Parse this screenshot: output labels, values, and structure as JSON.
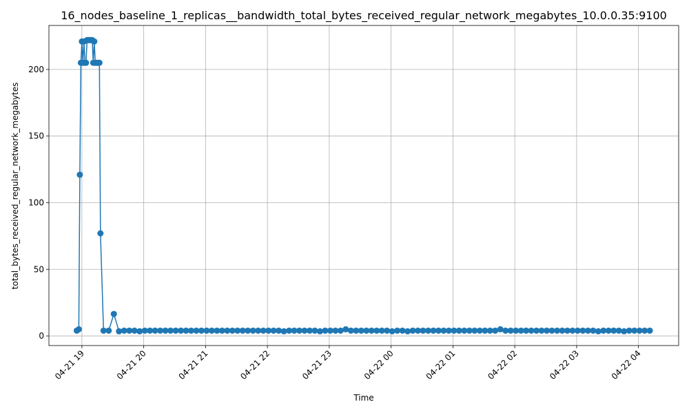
{
  "chart_data": {
    "type": "line",
    "title": "16_nodes_baseline_1_replicas__bandwidth_total_bytes_received_regular_network_megabytes_10.0.0.35:9100",
    "xlabel": "Time",
    "ylabel": "total_bytes_received_regular_network_megabytes",
    "grid": true,
    "xlim": [
      "04-21 18:28",
      "04-22 04:39"
    ],
    "xticks": [
      "04-21 19",
      "04-21 20",
      "04-21 21",
      "04-21 22",
      "04-21 23",
      "04-22 00",
      "04-22 01",
      "04-22 02",
      "04-22 03",
      "04-22 04"
    ],
    "ylim": [
      -7.2,
      233
    ],
    "yticks": [
      0,
      50,
      100,
      150,
      200
    ],
    "x": [
      "04-21 18:55",
      "04-21 18:57",
      "04-21 18:58",
      "04-21 18:59",
      "04-21 19:00",
      "04-21 19:01",
      "04-21 19:02",
      "04-21 19:03",
      "04-21 19:04",
      "04-21 19:05",
      "04-21 19:06",
      "04-21 19:07",
      "04-21 19:08",
      "04-21 19:09",
      "04-21 19:10",
      "04-21 19:11",
      "04-21 19:12",
      "04-21 19:13",
      "04-21 19:14",
      "04-21 19:15",
      "04-21 19:16",
      "04-21 19:17",
      "04-21 19:18",
      "04-21 19:21",
      "04-21 19:26",
      "04-21 19:31",
      "04-21 19:36",
      "04-21 19:41",
      "04-21 19:46",
      "04-21 19:51",
      "04-21 19:56",
      "04-21 20:01",
      "04-21 20:06",
      "04-21 20:11",
      "04-21 20:16",
      "04-21 20:21",
      "04-21 20:26",
      "04-21 20:31",
      "04-21 20:36",
      "04-21 20:41",
      "04-21 20:46",
      "04-21 20:51",
      "04-21 20:56",
      "04-21 21:01",
      "04-21 21:06",
      "04-21 21:11",
      "04-21 21:16",
      "04-21 21:21",
      "04-21 21:26",
      "04-21 21:31",
      "04-21 21:36",
      "04-21 21:41",
      "04-21 21:46",
      "04-21 21:51",
      "04-21 21:56",
      "04-21 22:01",
      "04-21 22:06",
      "04-21 22:11",
      "04-21 22:16",
      "04-21 22:21",
      "04-21 22:26",
      "04-21 22:31",
      "04-21 22:36",
      "04-21 22:41",
      "04-21 22:46",
      "04-21 22:51",
      "04-21 22:56",
      "04-21 23:01",
      "04-21 23:06",
      "04-21 23:11",
      "04-21 23:16",
      "04-21 23:21",
      "04-21 23:26",
      "04-21 23:31",
      "04-21 23:36",
      "04-21 23:41",
      "04-21 23:46",
      "04-21 23:51",
      "04-21 23:56",
      "04-22 00:01",
      "04-22 00:06",
      "04-22 00:11",
      "04-22 00:16",
      "04-22 00:21",
      "04-22 00:26",
      "04-22 00:31",
      "04-22 00:36",
      "04-22 00:41",
      "04-22 00:46",
      "04-22 00:51",
      "04-22 00:56",
      "04-22 01:01",
      "04-22 01:06",
      "04-22 01:11",
      "04-22 01:16",
      "04-22 01:21",
      "04-22 01:26",
      "04-22 01:31",
      "04-22 01:36",
      "04-22 01:41",
      "04-22 01:46",
      "04-22 01:51",
      "04-22 01:56",
      "04-22 02:01",
      "04-22 02:06",
      "04-22 02:11",
      "04-22 02:16",
      "04-22 02:21",
      "04-22 02:26",
      "04-22 02:31",
      "04-22 02:36",
      "04-22 02:41",
      "04-22 02:46",
      "04-22 02:51",
      "04-22 02:56",
      "04-22 03:01",
      "04-22 03:06",
      "04-22 03:11",
      "04-22 03:16",
      "04-22 03:21",
      "04-22 03:26",
      "04-22 03:31",
      "04-22 03:36",
      "04-22 03:41",
      "04-22 03:46",
      "04-22 03:51",
      "04-22 03:56",
      "04-22 04:01",
      "04-22 04:06",
      "04-22 04:11"
    ],
    "series": [
      {
        "name": "total_bytes_received_regular_network_megabytes",
        "color": "#1f77b4",
        "values": [
          4,
          5,
          121,
          205,
          221,
          205,
          221,
          205,
          205,
          222,
          222,
          222,
          222,
          222,
          222,
          205,
          221,
          205,
          205,
          205,
          205,
          205,
          77,
          4,
          4,
          16.5,
          3.5,
          4,
          4,
          4,
          3.5,
          4,
          4,
          4,
          4,
          4,
          4,
          4,
          4,
          4,
          4,
          4,
          4,
          4,
          4,
          4,
          4,
          4,
          4,
          4,
          4,
          4,
          4,
          4,
          4,
          4,
          4,
          4,
          3.5,
          4,
          4,
          4,
          4,
          4,
          4,
          3.5,
          4,
          4,
          4,
          4,
          5,
          4,
          4,
          4,
          4,
          4,
          4,
          4,
          4,
          3.5,
          4,
          4,
          3.5,
          4,
          4,
          4,
          4,
          4,
          4,
          4,
          4,
          4,
          4,
          4,
          4,
          4,
          4,
          4,
          4,
          4,
          5,
          4,
          4,
          4,
          4,
          4,
          4,
          4,
          4,
          4,
          4,
          4,
          4,
          4,
          4,
          4,
          4,
          4,
          4,
          3.5,
          4,
          4,
          4,
          4,
          3.5,
          4,
          4,
          4,
          4,
          4
        ]
      }
    ]
  }
}
